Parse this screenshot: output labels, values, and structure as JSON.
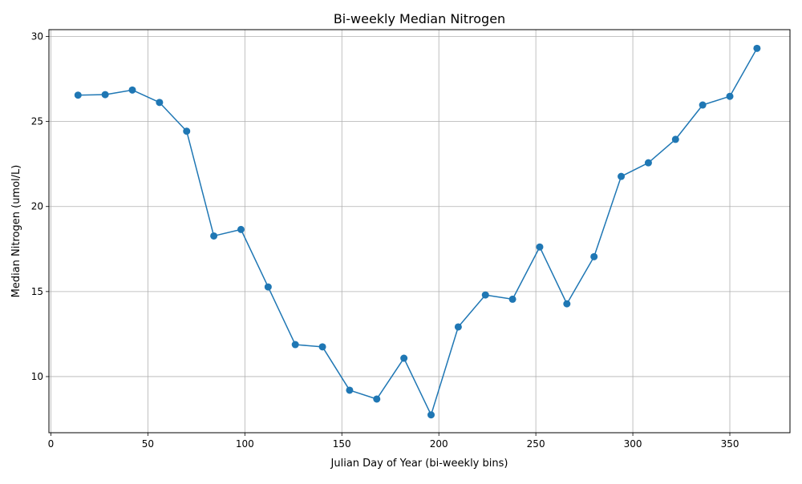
{
  "chart_data": {
    "type": "line",
    "title": "Bi-weekly Median Nitrogen",
    "xlabel": "Julian Day of Year (bi-weekly bins)",
    "ylabel": "Median Nitrogen (umol/L)",
    "xlim": [
      -1,
      381
    ],
    "ylim": [
      6.7,
      30.4
    ],
    "xticks": [
      0,
      50,
      100,
      150,
      200,
      250,
      300,
      350
    ],
    "yticks": [
      10,
      15,
      20,
      25,
      30
    ],
    "grid": true,
    "legend": "none",
    "series": [
      {
        "color": "#1f77b4",
        "marker": "circle",
        "x": [
          14,
          28,
          42,
          56,
          70,
          84,
          98,
          112,
          126,
          140,
          154,
          168,
          182,
          196,
          210,
          224,
          238,
          252,
          266,
          280,
          294,
          308,
          322,
          336,
          350,
          364
        ],
        "y": [
          26.55,
          26.58,
          26.85,
          26.12,
          24.43,
          18.27,
          18.65,
          15.27,
          11.88,
          11.75,
          9.2,
          8.68,
          11.08,
          7.75,
          12.92,
          14.8,
          14.55,
          17.62,
          14.28,
          17.05,
          21.77,
          22.57,
          23.95,
          25.97,
          26.48,
          29.3
        ]
      }
    ]
  }
}
